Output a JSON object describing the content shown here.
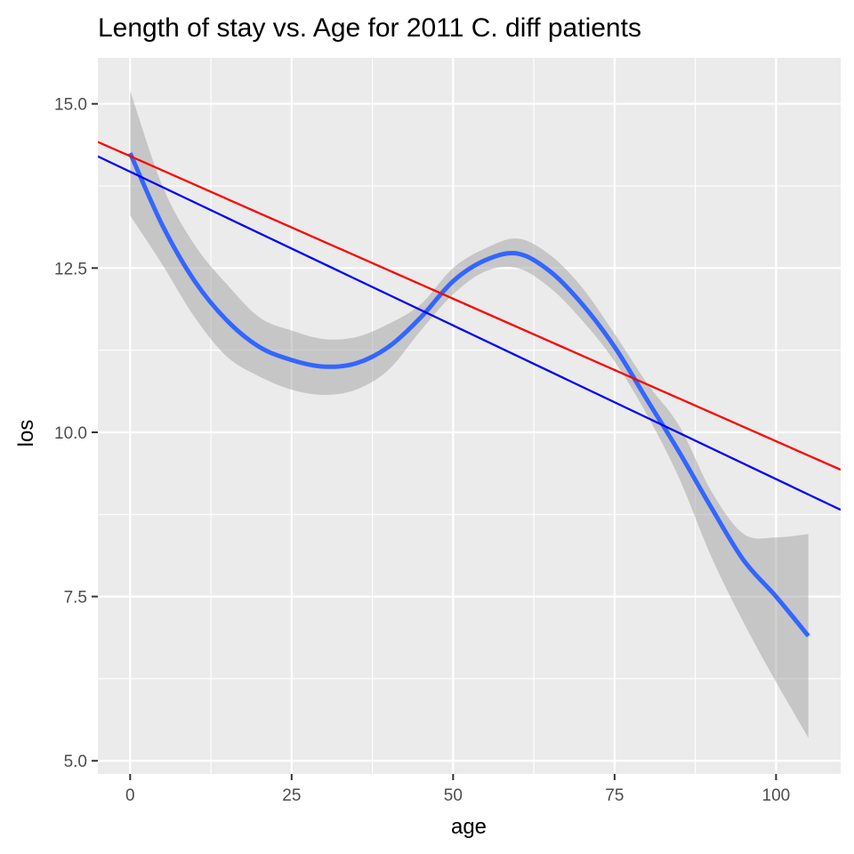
{
  "chart_data": {
    "type": "line",
    "title": "Length of stay vs. Age for 2011 C. diff patients",
    "xlabel": "age",
    "ylabel": "los",
    "xlim": [
      -5,
      110
    ],
    "ylim": [
      4.8,
      15.7
    ],
    "x_ticks": [
      0,
      25,
      50,
      75,
      100
    ],
    "y_ticks": [
      5.0,
      7.5,
      10.0,
      12.5,
      15.0
    ],
    "x_tick_labels": [
      "0",
      "25",
      "50",
      "75",
      "100"
    ],
    "y_tick_labels": [
      "5.0",
      "7.5",
      "10.0",
      "12.5",
      "15.0"
    ],
    "grid": true,
    "panel_background": "#ebebeb",
    "series": [
      {
        "type": "smooth",
        "color": "#3366ff",
        "x": [
          0,
          5,
          10,
          15,
          20,
          25,
          30,
          35,
          40,
          45,
          50,
          55,
          60,
          65,
          70,
          75,
          80,
          85,
          90,
          95,
          100,
          105
        ],
        "y": [
          14.25,
          13.15,
          12.3,
          11.7,
          11.3,
          11.1,
          11.0,
          11.05,
          11.3,
          11.75,
          12.3,
          12.62,
          12.72,
          12.45,
          11.95,
          11.3,
          10.5,
          9.7,
          8.85,
          8.05,
          7.5,
          6.9
        ],
        "ci_lower": [
          13.3,
          12.55,
          11.75,
          11.15,
          10.85,
          10.65,
          10.57,
          10.65,
          10.95,
          11.55,
          12.1,
          12.45,
          12.5,
          12.2,
          11.7,
          11.08,
          10.27,
          9.3,
          8.1,
          7.1,
          6.2,
          5.35
        ],
        "ci_upper": [
          15.2,
          13.75,
          12.85,
          12.25,
          11.75,
          11.55,
          11.42,
          11.45,
          11.65,
          11.95,
          12.5,
          12.8,
          12.95,
          12.7,
          12.2,
          11.5,
          10.75,
          10.1,
          9.1,
          8.45,
          8.4,
          8.45
        ]
      },
      {
        "type": "line",
        "color": "#ff0000",
        "x": [
          -5,
          110
        ],
        "y": [
          14.42,
          9.43
        ]
      },
      {
        "type": "line",
        "color": "#0000ff",
        "x": [
          -5,
          110
        ],
        "y": [
          14.2,
          8.82
        ]
      }
    ]
  }
}
